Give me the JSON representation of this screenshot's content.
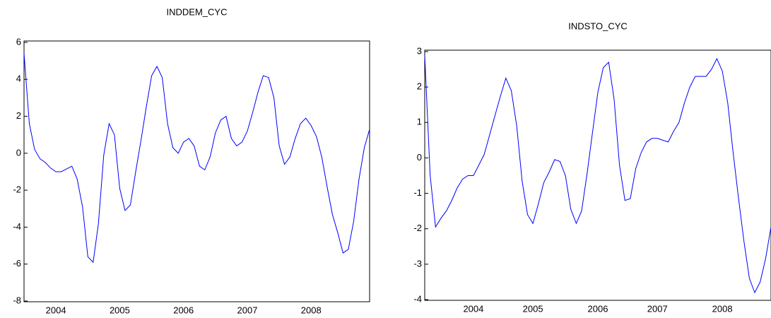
{
  "chart_data": [
    {
      "type": "line",
      "title": "INDDEM_CYC",
      "categories": [
        null,
        null,
        null,
        null,
        null,
        null,
        "2004",
        null,
        null,
        null,
        null,
        null,
        null,
        null,
        null,
        null,
        null,
        null,
        "2005",
        null,
        null,
        null,
        null,
        null,
        null,
        null,
        null,
        null,
        null,
        null,
        "2006",
        null,
        null,
        null,
        null,
        null,
        null,
        null,
        null,
        null,
        null,
        null,
        "2007",
        null,
        null,
        null,
        null,
        null,
        null,
        null,
        null,
        null,
        null,
        null,
        "2008",
        null,
        null,
        null,
        null,
        null,
        null,
        null,
        null,
        null,
        null,
        null
      ],
      "series": [
        {
          "color": "#0000ff",
          "values": [
            5.4,
            1.6,
            0.2,
            -0.3,
            -0.5,
            -0.8,
            -1.0,
            -1.0,
            -0.85,
            -0.7,
            -1.4,
            -2.9,
            -5.6,
            -5.9,
            -3.8,
            -0.1,
            1.6,
            1.0,
            -1.9,
            -3.1,
            -2.8,
            -1.0,
            0.7,
            2.5,
            4.2,
            4.7,
            4.1,
            1.6,
            0.3,
            0.0,
            0.6,
            0.8,
            0.4,
            -0.7,
            -0.9,
            -0.2,
            1.1,
            1.8,
            2.0,
            0.8,
            0.4,
            0.6,
            1.2,
            2.2,
            3.3,
            4.2,
            4.1,
            3.0,
            0.4,
            -0.6,
            -0.2,
            0.8,
            1.6,
            1.9,
            1.5,
            0.9,
            -0.2,
            -1.8,
            -3.3,
            -4.3,
            -5.4,
            -5.2,
            -3.7,
            -1.4,
            0.3,
            1.3
          ]
        }
      ],
      "ylim": [
        -8,
        6
      ],
      "yticks": [
        -8,
        -6,
        -4,
        -2,
        0,
        2,
        4,
        6
      ]
    },
    {
      "type": "line",
      "title": "INDSTO_CYC",
      "categories": [
        null,
        null,
        null,
        null,
        null,
        null,
        null,
        null,
        null,
        "2004",
        null,
        null,
        null,
        null,
        null,
        null,
        null,
        null,
        null,
        null,
        "2005",
        null,
        null,
        null,
        null,
        null,
        null,
        null,
        null,
        null,
        null,
        null,
        "2006",
        null,
        null,
        null,
        null,
        null,
        null,
        null,
        null,
        null,
        null,
        "2007",
        null,
        null,
        null,
        null,
        null,
        null,
        null,
        null,
        null,
        null,
        null,
        "2008",
        null,
        null,
        null,
        null,
        null,
        null,
        null,
        null,
        null
      ],
      "series": [
        {
          "color": "#0000ff",
          "values": [
            2.9,
            -0.5,
            -1.95,
            -1.7,
            -1.5,
            -1.2,
            -0.85,
            -0.6,
            -0.5,
            -0.5,
            -0.2,
            0.1,
            0.65,
            1.2,
            1.75,
            2.25,
            1.9,
            0.9,
            -0.65,
            -1.6,
            -1.85,
            -1.3,
            -0.7,
            -0.4,
            -0.05,
            -0.1,
            -0.5,
            -1.45,
            -1.85,
            -1.5,
            -0.45,
            0.7,
            1.85,
            2.55,
            2.7,
            1.65,
            -0.2,
            -1.2,
            -1.15,
            -0.3,
            0.15,
            0.45,
            0.55,
            0.55,
            0.5,
            0.45,
            0.75,
            1.0,
            1.55,
            2.0,
            2.3,
            2.3,
            2.3,
            2.5,
            2.8,
            2.45,
            1.55,
            0.15,
            -1.15,
            -2.35,
            -3.4,
            -3.8,
            -3.5,
            -2.85,
            -1.95
          ]
        }
      ],
      "ylim": [
        -4,
        3
      ],
      "yticks": [
        -4,
        -3,
        -2,
        -1,
        0,
        1,
        2,
        3
      ]
    }
  ]
}
